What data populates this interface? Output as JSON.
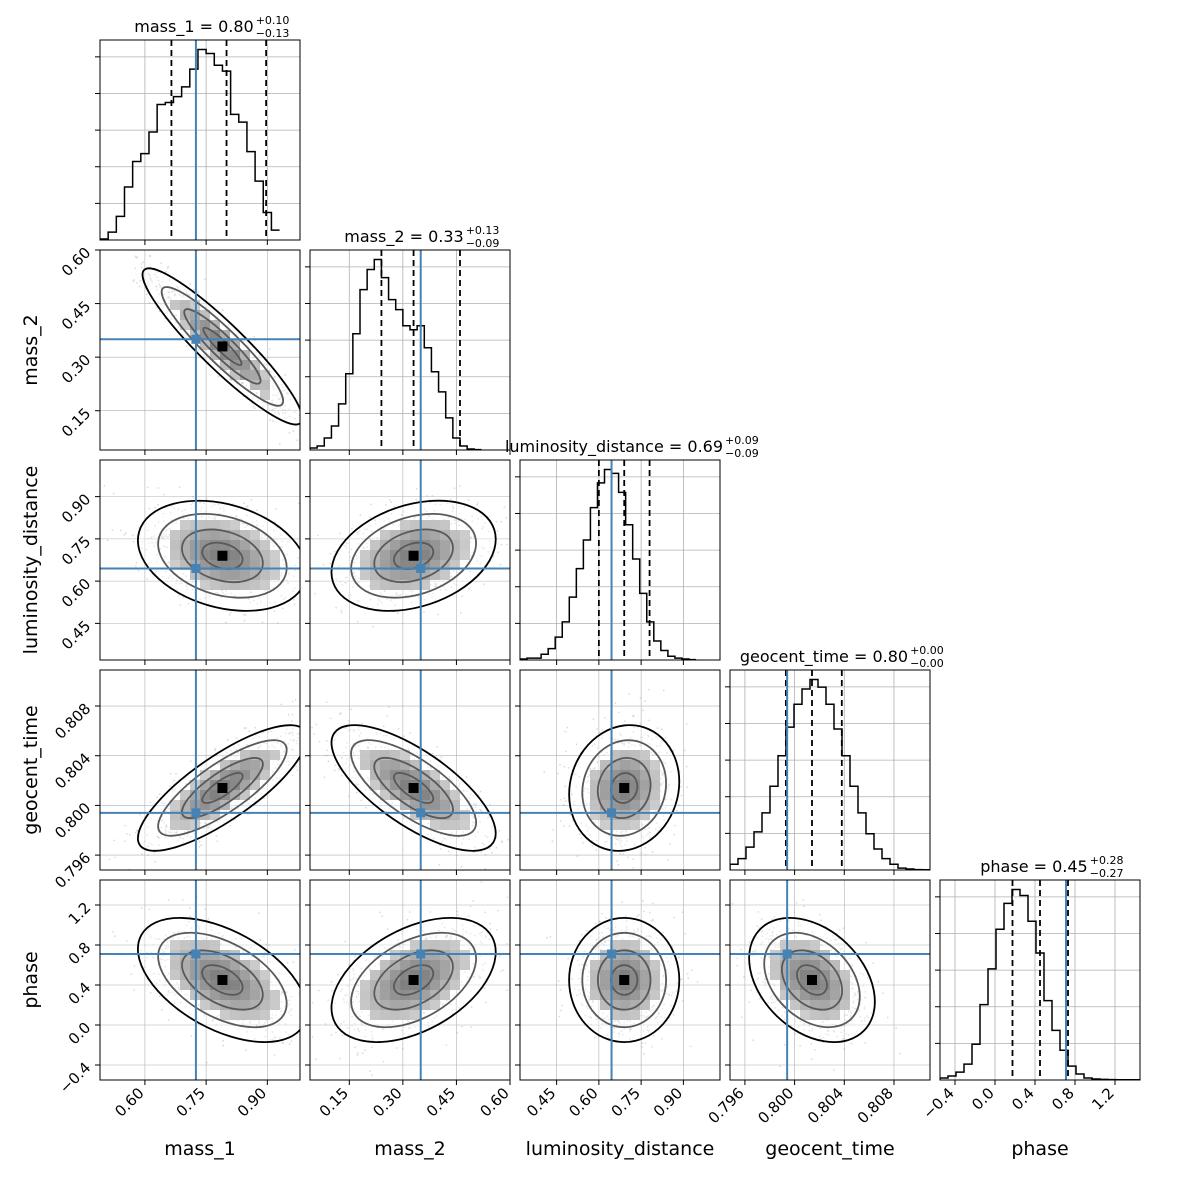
{
  "chart_data": {
    "type": "corner",
    "parameters": [
      {
        "name": "mass_1",
        "label": "mass_1",
        "median": 0.8,
        "plus": 0.1,
        "minus": 0.13,
        "title_main": "mass_1 = 0.80",
        "title_sup": "+0.10",
        "title_sub": "−0.13",
        "range": [
          0.49,
          0.98
        ],
        "ticks": [
          "0.60",
          "0.75",
          "0.90"
        ],
        "tick_values": [
          0.6,
          0.75,
          0.9
        ],
        "truth": 0.725,
        "quantiles": [
          0.665,
          0.8,
          0.897
        ],
        "hist_start": 0.49,
        "hist_step": 0.02,
        "hist": [
          0.5,
          4,
          12,
          27,
          40,
          44,
          55,
          69,
          70,
          73,
          78,
          87,
          97,
          95,
          89,
          86,
          64,
          60,
          45,
          30,
          14,
          5
        ]
      },
      {
        "name": "mass_2",
        "label": "mass_2",
        "median": 0.33,
        "plus": 0.13,
        "minus": 0.09,
        "title_main": "mass_2 = 0.33",
        "title_sup": "+0.13",
        "title_sub": "−0.09",
        "range": [
          0.04,
          0.6
        ],
        "ticks": [
          "0.15",
          "0.30",
          "0.45",
          "0.60"
        ],
        "tick_values": [
          0.15,
          0.3,
          0.45,
          0.6
        ],
        "truth": 0.35,
        "quantiles": [
          0.24,
          0.33,
          0.46
        ],
        "hist_start": 0.04,
        "hist_step": 0.02,
        "hist": [
          1,
          2,
          6,
          12,
          23,
          38,
          58,
          80,
          90,
          95,
          86,
          75,
          70,
          62,
          60,
          62,
          51,
          39,
          29,
          16,
          6,
          2,
          0.5,
          0.2
        ]
      },
      {
        "name": "luminosity_distance",
        "label": "luminosity_distance",
        "median": 0.69,
        "plus": 0.09,
        "minus": 0.09,
        "title_main": "luminosity_distance = 0.69",
        "title_sup": "+0.09",
        "title_sub": "−0.09",
        "range": [
          0.32,
          1.03
        ],
        "ticks": [
          "0.45",
          "0.60",
          "0.75",
          "0.90"
        ],
        "tick_values": [
          0.45,
          0.6,
          0.75,
          0.9
        ],
        "truth": 0.645,
        "quantiles": [
          0.6,
          0.69,
          0.78
        ],
        "hist_start": 0.32,
        "hist_step": 0.025,
        "hist": [
          0.5,
          1,
          1,
          3,
          6,
          12,
          20,
          33,
          48,
          63,
          80,
          93,
          100,
          98,
          88,
          71,
          53,
          35,
          20,
          10,
          5,
          2,
          1,
          0.5,
          0.2
        ]
      },
      {
        "name": "geocent_time",
        "label": "geocent_time",
        "median": 0.8,
        "plus": 0.0,
        "minus": 0.0,
        "title_main": "geocent_time = 0.80",
        "title_sup": "+0.00",
        "title_sub": "−0.00",
        "range": [
          0.7948,
          0.8109
        ],
        "ticks": [
          "0.796",
          "0.800",
          "0.804",
          "0.808"
        ],
        "tick_values": [
          0.796,
          0.8,
          0.804,
          0.808
        ],
        "truth": 0.7994,
        "quantiles": [
          0.7993,
          0.8014,
          0.8038
        ],
        "hist_start": 0.7948,
        "hist_step": 0.000644,
        "hist": [
          3,
          6,
          12,
          20,
          30,
          44,
          60,
          75,
          87,
          95,
          100,
          96,
          87,
          74,
          60,
          44,
          30,
          19,
          11,
          6,
          3,
          1,
          0.5,
          0.2,
          0.1
        ]
      },
      {
        "name": "phase",
        "label": "phase",
        "median": 0.45,
        "plus": 0.28,
        "minus": 0.27,
        "title_main": "phase = 0.45",
        "title_sup": "+0.28",
        "title_sub": "−0.27",
        "range": [
          -0.55,
          1.45
        ],
        "ticks": [
          "−0.4",
          "0.0",
          "0.4",
          "0.8",
          "1.2"
        ],
        "tick_values": [
          -0.4,
          0.0,
          0.4,
          0.8,
          1.2
        ],
        "truth": 0.71,
        "quantiles": [
          0.175,
          0.45,
          0.73
        ],
        "hist_start": -0.55,
        "hist_step": 0.08,
        "hist": [
          1,
          2,
          4,
          8,
          18,
          38,
          56,
          76,
          89,
          96,
          93,
          80,
          64,
          40,
          25,
          15,
          7,
          3,
          1,
          0.5,
          0.3,
          0.2,
          0.1,
          0.1,
          0.1
        ]
      }
    ],
    "pairs": [
      {
        "x": "mass_1",
        "y": "mass_2",
        "mean": [
          0.79,
          0.33
        ],
        "sd": [
          0.085,
          0.095
        ],
        "rho": -0.92
      },
      {
        "x": "mass_1",
        "y": "luminosity_distance",
        "mean": [
          0.79,
          0.69
        ],
        "sd": [
          0.09,
          0.085
        ],
        "rho": -0.28
      },
      {
        "x": "mass_2",
        "y": "luminosity_distance",
        "mean": [
          0.33,
          0.69
        ],
        "sd": [
          0.1,
          0.085
        ],
        "rho": 0.3
      },
      {
        "x": "luminosity_distance",
        "y": "geocent_time",
        "mean": [
          0.69,
          0.8014
        ],
        "sd": [
          0.085,
          0.0022
        ],
        "rho": 0.1
      },
      {
        "x": "mass_1",
        "y": "geocent_time",
        "mean": [
          0.79,
          0.8014
        ],
        "sd": [
          0.09,
          0.0022
        ],
        "rho": 0.8
      },
      {
        "x": "mass_2",
        "y": "geocent_time",
        "mean": [
          0.33,
          0.8014
        ],
        "sd": [
          0.1,
          0.0022
        ],
        "rho": -0.72
      },
      {
        "x": "mass_1",
        "y": "phase",
        "mean": [
          0.79,
          0.45
        ],
        "sd": [
          0.09,
          0.27
        ],
        "rho": -0.5
      },
      {
        "x": "mass_2",
        "y": "phase",
        "mean": [
          0.33,
          0.45
        ],
        "sd": [
          0.1,
          0.27
        ],
        "rho": 0.45
      },
      {
        "x": "luminosity_distance",
        "y": "phase",
        "mean": [
          0.69,
          0.45
        ],
        "sd": [
          0.085,
          0.27
        ],
        "rho": 0.0
      },
      {
        "x": "geocent_time",
        "y": "phase",
        "mean": [
          0.8014,
          0.45
        ],
        "sd": [
          0.0022,
          0.27
        ],
        "rho": -0.35
      }
    ],
    "colors": {
      "truth": "#4682b4",
      "hist": "#000000",
      "grid": "#b0b0b0",
      "contour": "#000000",
      "scatter": "#9a9a9a"
    },
    "grid": true
  }
}
